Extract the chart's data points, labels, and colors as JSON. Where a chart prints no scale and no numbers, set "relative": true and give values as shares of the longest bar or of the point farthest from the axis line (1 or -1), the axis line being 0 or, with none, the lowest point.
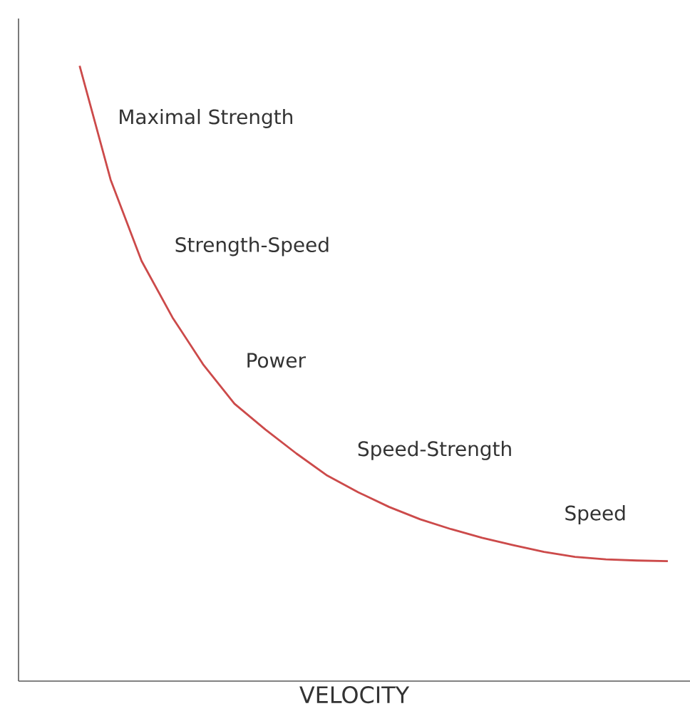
{
  "chart_data": {
    "type": "line",
    "relative": true,
    "xlabel": "VELOCITY",
    "tick_labels": false,
    "categories": [
      null,
      null,
      null,
      null,
      null,
      null,
      null,
      null,
      null,
      null,
      null,
      null,
      null,
      null,
      null,
      null,
      null,
      null,
      null,
      null
    ],
    "series": [
      {
        "color": "#cc4a4a",
        "values": [
          1,
          0.815,
          0.683,
          0.591,
          0.514,
          0.451,
          0.409,
          0.37,
          0.334,
          0.307,
          0.283,
          0.263,
          0.247,
          0.233,
          0.221,
          0.21,
          0.202,
          0.198,
          0.196,
          0.195
        ]
      }
    ],
    "annotations": [
      "Maximal Strength",
      "Strength-Speed",
      "Power",
      "Speed-Strength",
      "Speed"
    ]
  }
}
